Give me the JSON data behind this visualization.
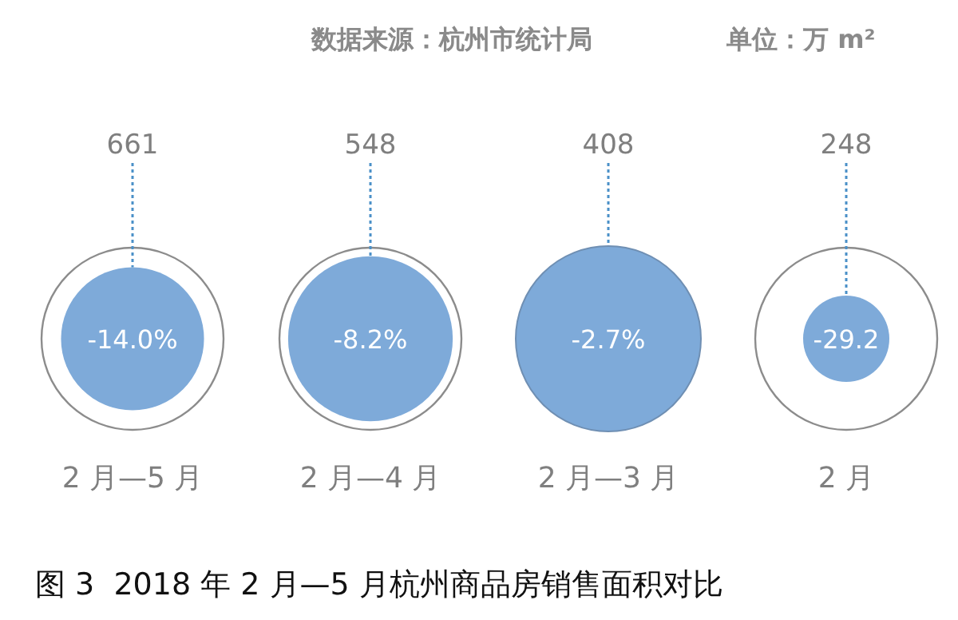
{
  "chart_data": {
    "type": "other",
    "title": "图 3  2018 年 2 月—5 月杭州商品房销售面积对比",
    "annotations": [
      "数据来源：杭州市统计局",
      "单位：万 m²"
    ],
    "categories": [
      "2 月—5 月",
      "2 月—4 月",
      "2 月—3 月",
      "2 月"
    ],
    "data_labels": true,
    "series": [
      {
        "type": "bubble",
        "color": "#7eaad9",
        "values": [
          661,
          548,
          408,
          248
        ]
      },
      {
        "type": "other",
        "values": [
          -14.0,
          -8.2,
          -2.7,
          -29.2
        ],
        "value_labels": [
          "-14.0%",
          "-8.2%",
          "-2.7%",
          "-29.2"
        ]
      }
    ]
  }
}
